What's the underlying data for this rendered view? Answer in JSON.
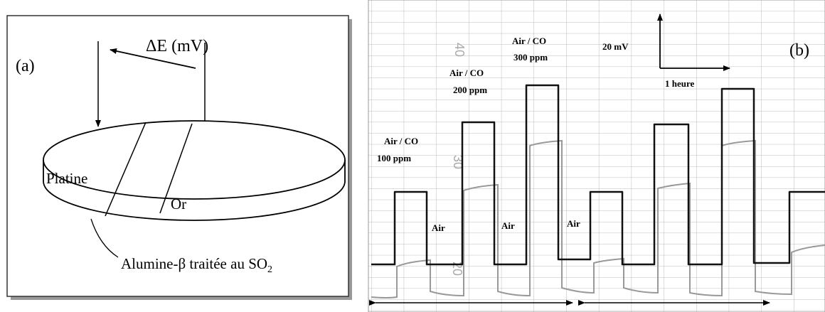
{
  "panel_a": {
    "label": "(a)",
    "voltage": "ΔE (mV)",
    "electrode_left": "Platine",
    "electrode_right": "Or",
    "substrate": "Alumine-β traitée au SO",
    "substrate_subscript": "2"
  },
  "panel_b": {
    "label": "(b)",
    "scale_voltage": "20 mV",
    "scale_time": "1 heure",
    "steps": [
      {
        "gas": "Air / CO",
        "concentration": "100 ppm"
      },
      {
        "gas": "Air / CO",
        "concentration": "200 ppm"
      },
      {
        "gas": "Air / CO",
        "concentration": "300 ppm"
      }
    ],
    "air_labels": [
      "Air",
      "Air",
      "Air"
    ],
    "paper_numbers": [
      "40",
      "30",
      "20"
    ]
  }
}
